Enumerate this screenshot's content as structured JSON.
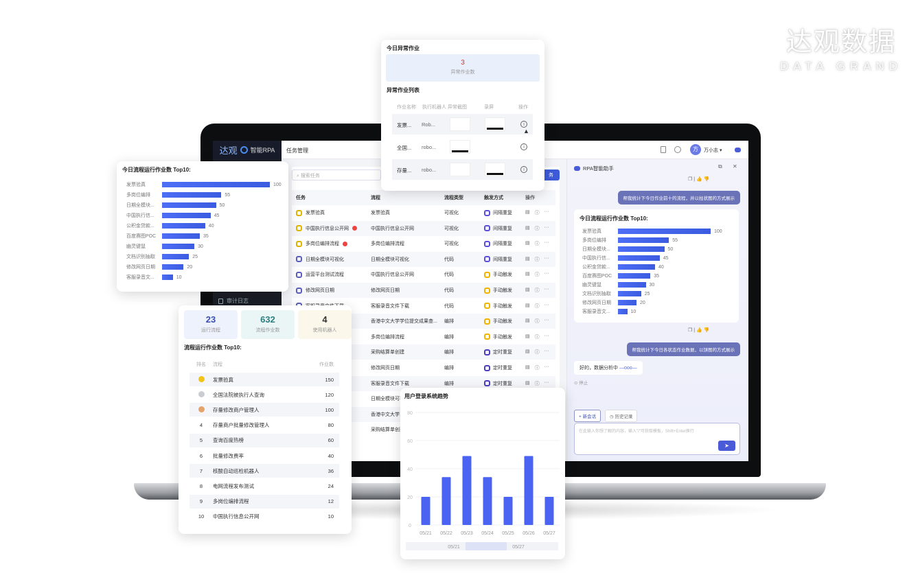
{
  "brand": {
    "logo_cn": "达观数据",
    "logo_en": "DATA GRAND"
  },
  "app": {
    "logo": "达观",
    "product": "智能RPA",
    "tab": "任务管理",
    "sidebar_bottom": "审计日志",
    "user": "万小志",
    "avatar": "方",
    "search_placeholder": "搜索任务",
    "new_button": "务",
    "table": {
      "headers": [
        "任务",
        "流程",
        "流程类型",
        "触发方式",
        "操作"
      ],
      "rows": [
        {
          "task": "发票验真",
          "flow": "发票验真",
          "type": "可视化",
          "trigger": "间隔重复",
          "kind": "visual",
          "alert": false
        },
        {
          "task": "中国执行信息公开网",
          "flow": "中国执行信息公开网",
          "type": "可视化",
          "trigger": "间隔重复",
          "kind": "visual",
          "alert": true
        },
        {
          "task": "多岗位编排流程",
          "flow": "多岗位编排流程",
          "type": "可视化",
          "trigger": "间隔重复",
          "kind": "visual",
          "alert": true
        },
        {
          "task": "日期全模块可视化",
          "flow": "日期全模块可视化",
          "type": "代码",
          "trigger": "间隔重复",
          "kind": "code",
          "alert": false
        },
        {
          "task": "运营平台测试流程",
          "flow": "中国执行信息公开网",
          "type": "代码",
          "trigger": "手动触发",
          "kind": "code",
          "alert": false
        },
        {
          "task": "修改网页日期",
          "flow": "修改网页日期",
          "type": "代码",
          "trigger": "手动触发",
          "kind": "code",
          "alert": false
        },
        {
          "task": "客服录音文件下载",
          "flow": "客服录音文件下载",
          "type": "代码",
          "trigger": "手动触发",
          "kind": "code",
          "alert": false
        },
        {
          "task": "",
          "flow": "香港中文大学学位提交成果查...",
          "type": "编排",
          "trigger": "手动触发",
          "kind": "code",
          "alert": false
        },
        {
          "task": "",
          "flow": "多岗位编排流程",
          "type": "编排",
          "trigger": "手动触发",
          "kind": "code",
          "alert": false
        },
        {
          "task": "",
          "flow": "采购结算单创建",
          "type": "编排",
          "trigger": "定时重复",
          "kind": "code",
          "alert": false
        },
        {
          "task": "",
          "flow": "修改网页日期",
          "type": "编排",
          "trigger": "定时重复",
          "kind": "code",
          "alert": false
        },
        {
          "task": "",
          "flow": "客服录音文件下载",
          "type": "编排",
          "trigger": "定时重复",
          "kind": "code",
          "alert": false
        },
        {
          "task": "",
          "flow": "日期全模块可视",
          "type": "",
          "trigger": "",
          "kind": "code",
          "alert": false
        },
        {
          "task": "",
          "flow": "香港中文大学",
          "type": "",
          "trigger": "",
          "kind": "code",
          "alert": false
        },
        {
          "task": "",
          "flow": "采购结算单创建",
          "type": "",
          "trigger": "",
          "kind": "code",
          "alert": false
        }
      ]
    },
    "trigger_colors": {
      "间隔重复": "#5b4fd6",
      "手动触发": "#f0b400",
      "定时重复": "#4b3fb8"
    }
  },
  "assistant": {
    "title": "RPA智能助手",
    "msg1": "帮我统计下今日作业前十的流程，并以柱状图的方式展示",
    "msg2": "帮我统计下今日各状态作业数据，以饼图的方式展示",
    "reply": "好的，数据分析中",
    "stop": "停止",
    "new_chat": "新会话",
    "history": "历史记录",
    "input_placeholder": "在此输入你想了解的内容，输入\"/\"可获取模板，Shift+Enter换行"
  },
  "anomaly": {
    "title": "今日异常作业",
    "count": "3",
    "count_label": "异常作业数",
    "list_title": "异常作业列表",
    "headers": [
      "作业名称",
      "执行机器人",
      "异常截图",
      "录屏",
      "操作"
    ],
    "rows": [
      {
        "name": "发票...",
        "robot": "Rob...",
        "shot": false,
        "rec": true
      },
      {
        "name": "全国...",
        "robot": "robo...",
        "shot": true,
        "rec": false
      },
      {
        "name": "存量...",
        "robot": "robo...",
        "shot": false,
        "rec": true
      }
    ]
  },
  "stats": {
    "items": [
      {
        "value": "23",
        "label": "运行流程",
        "color": "#3b4fb0",
        "bg": "#eef2fc"
      },
      {
        "value": "632",
        "label": "流程作业数",
        "color": "#2e7f80",
        "bg": "#eaf5f6"
      },
      {
        "value": "4",
        "label": "使用机器人",
        "color": "#333333",
        "bg": "#fbf7ea"
      }
    ],
    "rank_title": "流程运行作业数 Top10:",
    "headers": [
      "排名",
      "流程",
      "作业数"
    ],
    "rows": [
      {
        "rank": "1",
        "flow": "发票验真",
        "count": "150"
      },
      {
        "rank": "2",
        "flow": "全国法院被执行人查询",
        "count": "120"
      },
      {
        "rank": "3",
        "flow": "存量修改商户管理人",
        "count": "100"
      },
      {
        "rank": "4",
        "flow": "存量商户批量修改管理人",
        "count": "80"
      },
      {
        "rank": "5",
        "flow": "查询百度热榜",
        "count": "60"
      },
      {
        "rank": "6",
        "flow": "批量修改费率",
        "count": "40"
      },
      {
        "rank": "7",
        "flow": "核酸自动巡检机器人",
        "count": "36"
      },
      {
        "rank": "8",
        "flow": "电网流程发布测试",
        "count": "24"
      },
      {
        "rank": "9",
        "flow": "多岗位编排流程",
        "count": "12"
      },
      {
        "rank": "10",
        "flow": "中国执行信息公开网",
        "count": "10"
      }
    ],
    "medal_colors": [
      "#f0c419",
      "#c9ccd1",
      "#e5a36a"
    ]
  },
  "chart_data": [
    {
      "type": "bar",
      "orientation": "horizontal",
      "title": "今日流程运行作业数 Top10:",
      "categories": [
        "发票验真",
        "多岗位编排",
        "日期全模块...",
        "中国执行信...",
        "公积金贷款...",
        "百度赛图POC",
        "幽灵键鼠",
        "文档识别抽取",
        "修改网页日期",
        "客服录音文..."
      ],
      "values": [
        100,
        55,
        50,
        45,
        40,
        35,
        30,
        25,
        20,
        10
      ],
      "xlim": [
        0,
        100
      ],
      "data_labels": true
    },
    {
      "type": "bar",
      "orientation": "horizontal",
      "title": "今日流程运行作业数 Top10:",
      "categories": [
        "发票验真",
        "多岗位编排",
        "日期全模块...",
        "中国执行信...",
        "公积金贷款...",
        "百度赛图POC",
        "幽灵键鼠",
        "文档识别抽取",
        "修改网页日期",
        "客服录音文..."
      ],
      "values": [
        100,
        55,
        50,
        45,
        40,
        35,
        30,
        25,
        20,
        10
      ],
      "xlim": [
        0,
        100
      ],
      "data_labels": true
    },
    {
      "type": "bar",
      "title": "用户登录系统趋势",
      "categories": [
        "05/21",
        "05/22",
        "05/23",
        "05/24",
        "05/25",
        "05/26",
        "05/27"
      ],
      "values": [
        20,
        34,
        49,
        34,
        20,
        49,
        20
      ],
      "ylim": [
        0,
        80
      ],
      "yticks": [
        0,
        20,
        40,
        60,
        80
      ],
      "grid": true,
      "slider_labels": [
        "05/21",
        "05/27"
      ],
      "color": "#4a63f2"
    }
  ]
}
